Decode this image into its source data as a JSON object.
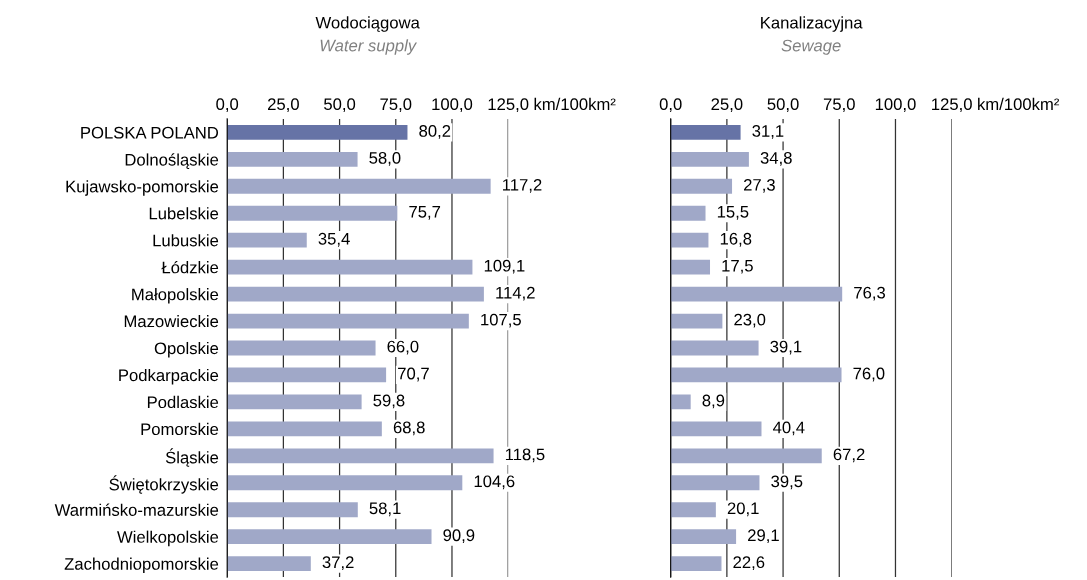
{
  "chart_data": [
    {
      "type": "bar",
      "orientation": "horizontal",
      "title": "Wodociągowa",
      "subtitle": "Water supply",
      "xlabel": "km/100km²",
      "categories": [
        "POLSKA POLAND",
        "Dolnośląskie",
        "Kujawsko-pomorskie",
        "Lubelskie",
        "Lubuskie",
        "Łódzkie",
        "Małopolskie",
        "Mazowieckie",
        "Opolskie",
        "Podkarpackie",
        "Podlaskie",
        "Pomorskie",
        "Śląskie",
        "Świętokrzyskie",
        "Warmińsko-mazurskie",
        "Wielkopolskie",
        "Zachodniopomorskie"
      ],
      "values": [
        80.2,
        58.0,
        117.2,
        75.7,
        35.4,
        109.1,
        114.2,
        107.5,
        66.0,
        70.7,
        59.8,
        68.8,
        118.5,
        104.6,
        58.1,
        90.9,
        37.2
      ],
      "value_labels": [
        "80,2",
        "58,0",
        "117,2",
        "75,7",
        "35,4",
        "109,1",
        "114,2",
        "107,5",
        "66,0",
        "70,7",
        "59,8",
        "68,8",
        "118,5",
        "104,6",
        "58,1",
        "90,9",
        "37,2"
      ],
      "colors": [
        "#6673a6",
        "#a0a8c8",
        "#a0a8c8",
        "#a0a8c8",
        "#a0a8c8",
        "#a0a8c8",
        "#a0a8c8",
        "#a0a8c8",
        "#a0a8c8",
        "#a0a8c8",
        "#a0a8c8",
        "#a0a8c8",
        "#a0a8c8",
        "#a0a8c8",
        "#a0a8c8",
        "#a0a8c8",
        "#a0a8c8"
      ],
      "xlim": [
        0,
        125
      ],
      "xticks": [
        {
          "value": 0,
          "label": "0,0"
        },
        {
          "value": 25,
          "label": "25,0"
        },
        {
          "value": 50,
          "label": "50,0"
        },
        {
          "value": 75,
          "label": "75,0"
        },
        {
          "value": 100,
          "label": "100,0"
        },
        {
          "value": 125,
          "label": "125,0"
        }
      ],
      "grid": "x"
    },
    {
      "type": "bar",
      "orientation": "horizontal",
      "title": "Kanalizacyjna",
      "subtitle": "Sewage",
      "xlabel": "km/100km²",
      "categories": [
        null,
        null,
        null,
        null,
        null,
        null,
        null,
        null,
        null,
        null,
        null,
        null,
        null,
        null,
        null,
        null,
        null
      ],
      "values": [
        31.1,
        34.8,
        27.3,
        15.5,
        16.8,
        17.5,
        76.3,
        23.0,
        39.1,
        76.0,
        8.9,
        40.4,
        67.2,
        39.5,
        20.1,
        29.1,
        22.6
      ],
      "value_labels": [
        "31,1",
        "34,8",
        "27,3",
        "15,5",
        "16,8",
        "17,5",
        "76,3",
        "23,0",
        "39,1",
        "76,0",
        "8,9",
        "40,4",
        "67,2",
        "39,5",
        "20,1",
        "29,1",
        "22,6"
      ],
      "colors": [
        "#6673a6",
        "#a0a8c8",
        "#a0a8c8",
        "#a0a8c8",
        "#a0a8c8",
        "#a0a8c8",
        "#a0a8c8",
        "#a0a8c8",
        "#a0a8c8",
        "#a0a8c8",
        "#a0a8c8",
        "#a0a8c8",
        "#a0a8c8",
        "#a0a8c8",
        "#a0a8c8",
        "#a0a8c8",
        "#a0a8c8"
      ],
      "xlim": [
        0,
        125
      ],
      "xticks": [
        {
          "value": 0,
          "label": "0,0"
        },
        {
          "value": 25,
          "label": "25,0"
        },
        {
          "value": 50,
          "label": "50,0"
        },
        {
          "value": 75,
          "label": "75,0"
        },
        {
          "value": 100,
          "label": "100,0"
        },
        {
          "value": 125,
          "label": "125,0"
        }
      ],
      "grid": "x",
      "tick_labels": "x"
    }
  ]
}
